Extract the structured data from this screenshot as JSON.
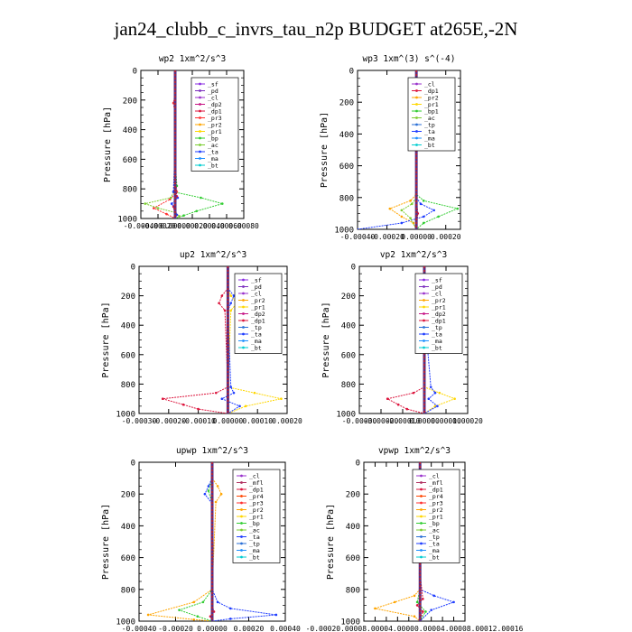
{
  "page_title": "jan24_clubb_c_invrs_tau_n2p  BUDGET at265E,-2N",
  "colors": {
    "_sf": "#8a2be2",
    "_pd": "#7b2fbe",
    "_cl": "#9932cc",
    "_dp2": "#c71585",
    "_dp1": "#dc143c",
    "_pr3": "#ff3030",
    "_pr2": "#ffa500",
    "_pr1": "#ffd700",
    "_bp": "#32cd32",
    "_bp1": "#32cd32",
    "_ac": "#7ccd32",
    "_ta": "#1e3cff",
    "_tp": "#2a6fd6",
    "_ma": "#1e90ff",
    "_bt": "#00ced1",
    "_mfl": "#b03060",
    "_pr4": "#ff4500"
  },
  "chart_data": [
    {
      "id": "wp2",
      "type": "line",
      "title": "wp2   1xm^2/s^3",
      "ylabel": "Pressure [hPa]",
      "ylim": [
        1000,
        0
      ],
      "xlim": [
        -0.0004,
        0.0008
      ],
      "yticks": [
        "0",
        "200",
        "400",
        "600",
        "800",
        "1000"
      ],
      "xticks": [
        "-0.00040",
        "-0.00020",
        "0.00000",
        "0.00020",
        "0.00040",
        "0.00060",
        "0.00080"
      ],
      "legend": [
        "_sf",
        "_pd",
        "_cl",
        "_dp2",
        "_dp1",
        "_pr3",
        "_pr2",
        "_pr1",
        "_bp",
        "_ac",
        "_ta",
        "_ma",
        "_bt"
      ],
      "series": [
        {
          "name": "_pr3",
          "x": [
            0,
            0,
            -2e-05,
            0,
            0,
            2e-05,
            -6e-05,
            -0.00025,
            -0.0001,
            0
          ],
          "y": [
            0,
            150,
            220,
            300,
            700,
            820,
            870,
            930,
            970,
            1000
          ]
        },
        {
          "name": "_bp",
          "x": [
            0,
            0,
            0,
            2e-05,
            -2e-05,
            0.0003,
            0.00055,
            0.00025,
            0.0001,
            0
          ],
          "y": [
            0,
            300,
            600,
            780,
            820,
            860,
            900,
            950,
            980,
            1000
          ]
        },
        {
          "name": "_ac",
          "x": [
            0,
            0,
            0,
            -5e-05,
            -0.00035,
            -0.0002,
            0,
            5e-05,
            0
          ],
          "y": [
            0,
            400,
            800,
            860,
            900,
            930,
            960,
            985,
            1000
          ]
        },
        {
          "name": "_ta",
          "x": [
            0,
            0,
            -2e-05,
            3e-05,
            -4e-05,
            0,
            2e-05,
            0
          ],
          "y": [
            0,
            500,
            820,
            860,
            900,
            940,
            975,
            1000
          ]
        },
        {
          "name": "_dp1",
          "x": [
            0,
            0,
            2e-05,
            -2e-05,
            0
          ],
          "y": [
            0,
            700,
            850,
            920,
            1000
          ]
        }
      ]
    },
    {
      "id": "wp3",
      "type": "line",
      "title": "wp3   1xm^(3) s^(-4)",
      "ylabel": "Pressure [hPa]",
      "ylim": [
        1000,
        0
      ],
      "xlim": [
        -0.0004,
        0.0003
      ],
      "yticks": [
        "0",
        "200",
        "400",
        "600",
        "800",
        "1000"
      ],
      "xticks": [
        "-0.00040",
        "-0.00020",
        "0.00000",
        "0.00020"
      ],
      "legend": [
        "_cl",
        "_dp1",
        "_pr2",
        "_pr1",
        "_bp1",
        "_ac",
        "_tp",
        "_ta",
        "_ma",
        "_bt"
      ],
      "series": [
        {
          "name": "_pr2",
          "x": [
            0,
            0,
            -4e-05,
            -0.00018,
            -0.0001,
            -2e-05,
            0
          ],
          "y": [
            0,
            780,
            820,
            870,
            920,
            960,
            1000
          ]
        },
        {
          "name": "_bp1",
          "x": [
            0,
            0,
            5e-05,
            0.00028,
            0.00015,
            5e-05,
            0
          ],
          "y": [
            0,
            780,
            820,
            870,
            920,
            960,
            1000
          ]
        },
        {
          "name": "_ta",
          "x": [
            0,
            0,
            3e-05,
            0.00012,
            5e-05,
            -0.0001,
            -0.0004
          ],
          "y": [
            0,
            800,
            840,
            880,
            920,
            960,
            1000
          ]
        },
        {
          "name": "_ac",
          "x": [
            0,
            0,
            -3e-05,
            -0.0001,
            -4e-05,
            0
          ],
          "y": [
            0,
            800,
            840,
            880,
            930,
            1000
          ]
        },
        {
          "name": "_dp1",
          "x": [
            0,
            0,
            1e-05,
            0
          ],
          "y": [
            0,
            800,
            900,
            1000
          ]
        }
      ]
    },
    {
      "id": "up2",
      "type": "line",
      "title": "up2   1xm^2/s^3",
      "ylabel": "Pressure [hPa]",
      "ylim": [
        1000,
        0
      ],
      "xlim": [
        -0.0003,
        0.0002
      ],
      "yticks": [
        "0",
        "200",
        "400",
        "600",
        "800",
        "1000"
      ],
      "xticks": [
        "-0.00030",
        "-0.00020",
        "-0.00010",
        "0.00000",
        "0.00010",
        "0.00020"
      ],
      "legend": [
        "_sf",
        "_pd",
        "_cl",
        "_pr2",
        "_pr1",
        "_dp2",
        "_dp1",
        "_tp",
        "_ta",
        "_ma",
        "_bt"
      ],
      "series": [
        {
          "name": "_pr1",
          "x": [
            0,
            0,
            1e-05,
            3e-05,
            1e-05,
            0,
            9e-05,
            0.00018,
            6e-05,
            0
          ],
          "y": [
            0,
            150,
            200,
            250,
            300,
            820,
            860,
            900,
            950,
            1000
          ]
        },
        {
          "name": "_dp1",
          "x": [
            0,
            0,
            -2e-05,
            -3e-05,
            -1e-05,
            0,
            -4e-05,
            -0.00022,
            -0.00015,
            -0.0001,
            0
          ],
          "y": [
            0,
            150,
            200,
            250,
            300,
            820,
            860,
            900,
            940,
            970,
            1000
          ]
        },
        {
          "name": "_ta",
          "x": [
            0,
            0,
            2e-05,
            1e-05,
            0,
            1e-05,
            2e-05,
            -2e-05,
            4e-05,
            0
          ],
          "y": [
            0,
            150,
            200,
            250,
            300,
            820,
            860,
            900,
            950,
            1000
          ]
        },
        {
          "name": "_cl",
          "x": [
            0,
            0,
            0,
            0
          ],
          "y": [
            0,
            500,
            900,
            1000
          ]
        }
      ]
    },
    {
      "id": "vp2",
      "type": "line",
      "title": "vp2   1xm^2/s^3",
      "ylabel": "Pressure [hPa]",
      "ylim": [
        1000,
        0
      ],
      "xlim": [
        -0.0003,
        0.0002
      ],
      "yticks": [
        "0",
        "200",
        "400",
        "600",
        "800",
        "1000"
      ],
      "xticks": [
        "-0.00030",
        "-0.00020",
        "-0.00010",
        "0.00000",
        "0.00010",
        "0.00020"
      ],
      "legend": [
        "_sf",
        "_pd",
        "_cl",
        "_pr2",
        "_pr1",
        "_dp2",
        "_dp1",
        "_tp",
        "_ta",
        "_ma",
        "_bt"
      ],
      "series": [
        {
          "name": "_pr1",
          "x": [
            0,
            0,
            1e-05,
            2e-05,
            0,
            0,
            7e-05,
            0.00014,
            5e-05,
            0
          ],
          "y": [
            0,
            150,
            200,
            250,
            300,
            820,
            860,
            900,
            950,
            1000
          ]
        },
        {
          "name": "_dp1",
          "x": [
            0,
            0,
            -1e-05,
            -2e-05,
            0,
            0,
            -5e-05,
            -0.00017,
            -0.00012,
            -8e-05,
            0
          ],
          "y": [
            0,
            150,
            200,
            250,
            300,
            820,
            860,
            900,
            940,
            970,
            1000
          ]
        },
        {
          "name": "_ta",
          "x": [
            0,
            0,
            1e-05,
            2e-05,
            0,
            3e-05,
            5e-05,
            2e-05,
            6e-05,
            0
          ],
          "y": [
            0,
            150,
            200,
            250,
            300,
            820,
            860,
            900,
            950,
            1000
          ]
        },
        {
          "name": "_cl",
          "x": [
            0,
            0,
            0,
            0
          ],
          "y": [
            0,
            500,
            900,
            1000
          ]
        }
      ]
    },
    {
      "id": "upwp",
      "type": "line",
      "title": "upwp   1xm^2/s^3",
      "ylabel": "Pressure [hPa]",
      "ylim": [
        1000,
        0
      ],
      "xlim": [
        -0.0004,
        0.0004
      ],
      "yticks": [
        "0",
        "200",
        "400",
        "600",
        "800",
        "1000"
      ],
      "xticks": [
        "-0.00040",
        "-0.00020",
        "0.00000",
        "0.00020",
        "0.00040"
      ],
      "legend": [
        "_cl",
        "_mfl",
        "_dp1",
        "_pr4",
        "_pr3",
        "_pr2",
        "_pr1",
        "_bp",
        "_ac",
        "_ta",
        "_tp",
        "_ma",
        "_bt"
      ],
      "series": [
        {
          "name": "_pr2",
          "x": [
            0,
            0,
            3e-05,
            5e-05,
            2e-05,
            0,
            -0.0001,
            -0.00035,
            -0.0001,
            0
          ],
          "y": [
            0,
            100,
            150,
            200,
            250,
            800,
            880,
            960,
            990,
            1000
          ]
        },
        {
          "name": "_ta",
          "x": [
            0,
            0,
            -2e-05,
            -4e-05,
            0,
            0,
            3e-05,
            0.0001,
            0.00035,
            0.0001,
            0
          ],
          "y": [
            0,
            100,
            150,
            200,
            260,
            800,
            880,
            920,
            960,
            985,
            1000
          ]
        },
        {
          "name": "_bp",
          "x": [
            0,
            0,
            -2e-05,
            0,
            0,
            -5e-05,
            -0.00018,
            -8e-05,
            0
          ],
          "y": [
            0,
            100,
            180,
            260,
            800,
            880,
            930,
            970,
            1000
          ]
        },
        {
          "name": "_dp1",
          "x": [
            0,
            0,
            0,
            1e-05,
            -1e-05,
            0
          ],
          "y": [
            0,
            400,
            900,
            940,
            970,
            1000
          ]
        }
      ]
    },
    {
      "id": "vpwp",
      "type": "line",
      "title": "vpwp   1xm^2/s^3",
      "ylabel": "Pressure [hPa]",
      "ylim": [
        1000,
        0
      ],
      "xlim": [
        -0.0002,
        0.00016
      ],
      "xticks": [
        "-0.00020",
        "-0.00016",
        "-0.00012",
        "-0.00008",
        "-0.00004",
        "0.00000",
        "0.00004",
        "0.00008",
        "0.00012",
        "0.00016"
      ],
      "xtick_text": "-0.00020.00008.00004.00000.00004.00008.00012.00016",
      "yticks": [
        "0",
        "200",
        "400",
        "600",
        "800",
        "1000"
      ],
      "legend": [
        "_cl",
        "_mfl",
        "_dp1",
        "_pr4",
        "_pr3",
        "_pr2",
        "_pr1",
        "_bp",
        "_ac",
        "_tp",
        "_ta",
        "_ma",
        "_bt"
      ],
      "series": [
        {
          "name": "_pr2",
          "x": [
            0,
            0,
            1e-05,
            2e-05,
            0,
            0,
            -2e-05,
            -9e-05,
            -0.00016,
            -2e-05,
            0
          ],
          "y": [
            0,
            150,
            180,
            220,
            260,
            800,
            840,
            880,
            920,
            970,
            1000
          ]
        },
        {
          "name": "_ta",
          "x": [
            0,
            0,
            -1e-05,
            -2e-05,
            0,
            0,
            5e-05,
            0.00012,
            4e-05,
            0
          ],
          "y": [
            0,
            150,
            180,
            220,
            260,
            800,
            840,
            880,
            930,
            1000
          ]
        },
        {
          "name": "_dp1",
          "x": [
            0,
            0,
            1e-05,
            -1e-05,
            1e-05,
            0
          ],
          "y": [
            0,
            700,
            860,
            900,
            940,
            1000
          ]
        },
        {
          "name": "_bp",
          "x": [
            0,
            0,
            -1e-05,
            2e-05,
            0
          ],
          "y": [
            0,
            800,
            880,
            940,
            1000
          ]
        }
      ]
    }
  ]
}
